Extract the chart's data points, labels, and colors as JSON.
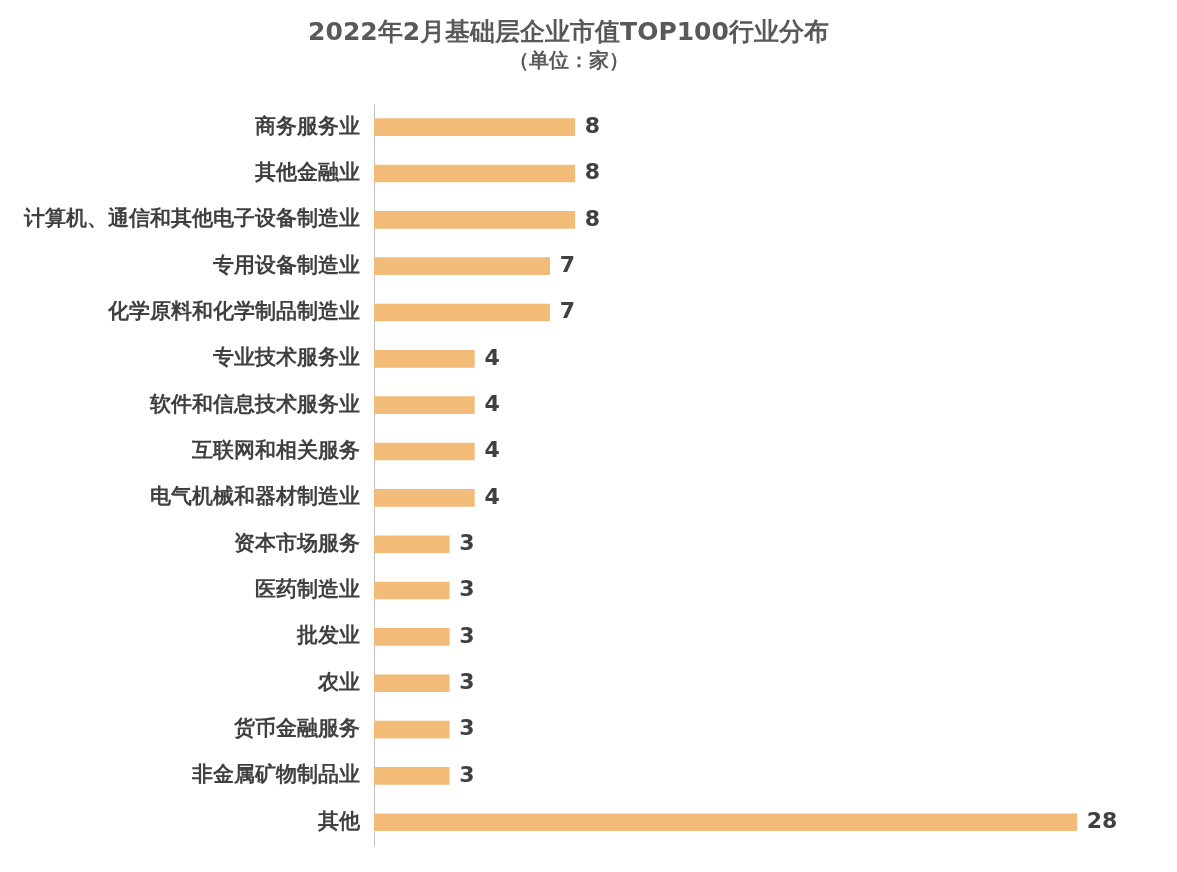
{
  "chart_data": {
    "type": "bar",
    "orientation": "horizontal",
    "title": "2022年2月基础层企业市值TOP100行业分布",
    "subtitle": "（单位：家）",
    "categories": [
      "商务服务业",
      "其他金融业",
      "计算机、通信和其他电子设备制造业",
      "专用设备制造业",
      "化学原料和化学制品制造业",
      "专业技术服务业",
      "软件和信息技术服务业",
      "互联网和相关服务",
      "电气机械和器材制造业",
      "资本市场服务",
      "医药制造业",
      "批发业",
      "农业",
      "货币金融服务",
      "非金属矿物制品业",
      "其他"
    ],
    "values": [
      8,
      8,
      8,
      7,
      7,
      4,
      4,
      4,
      4,
      3,
      3,
      3,
      3,
      3,
      3,
      28
    ],
    "color": "#f2bc78",
    "data_labels": true,
    "legend": false
  }
}
